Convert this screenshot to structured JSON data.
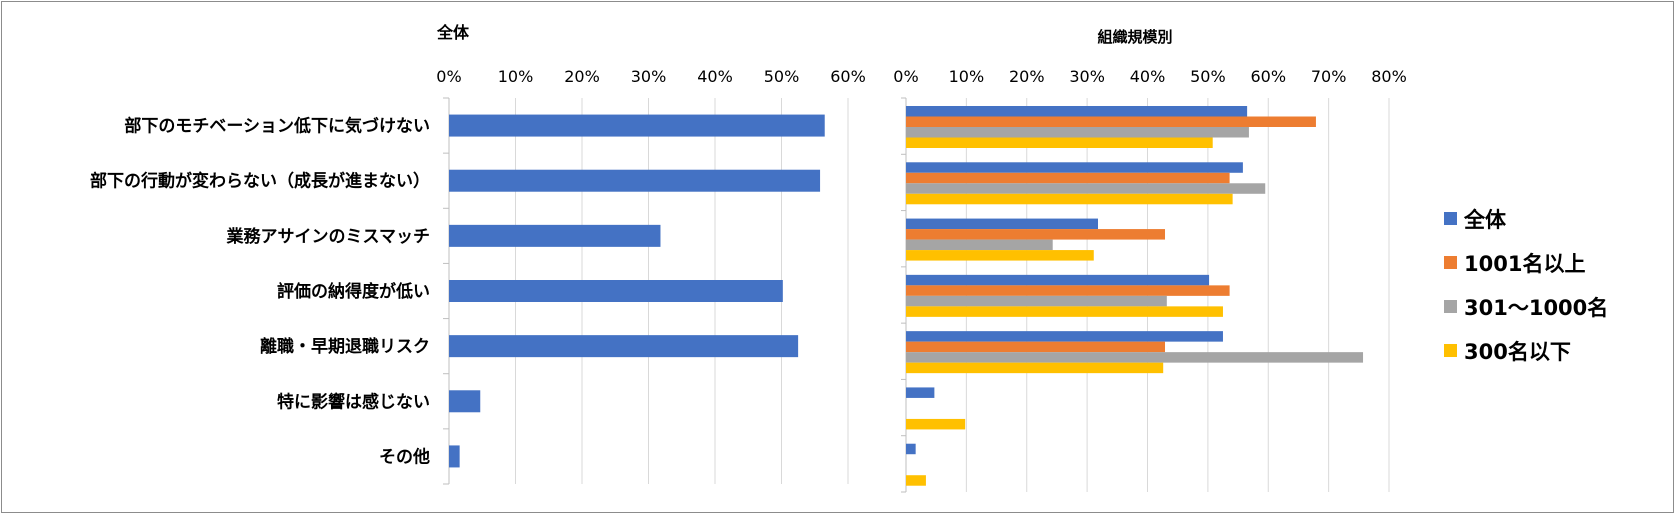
{
  "chart_data": [
    {
      "type": "bar",
      "orientation": "horizontal",
      "title": "全体",
      "categories": [
        "部下のモチベーション低下に気づけない",
        "部下の行動が変わらない（成長が進まない）",
        "業務アサインのミスマッチ",
        "評価の納得度が低い",
        "離職・早期退職リスク",
        "特に影響は感じない",
        "その他"
      ],
      "series": [
        {
          "name": "全体",
          "color": "#4472C4",
          "values": [
            56.5,
            55.8,
            31.8,
            50.2,
            52.5,
            4.7,
            1.6
          ]
        }
      ],
      "xlim": [
        0,
        60
      ],
      "ticks": [
        "0%",
        "10%",
        "20%",
        "30%",
        "40%",
        "50%",
        "60%"
      ],
      "grid": true
    },
    {
      "type": "bar",
      "orientation": "horizontal",
      "title": "組織規模別",
      "categories": [
        "部下のモチベーション低下に気づけない",
        "部下の行動が変わらない（成長が進まない）",
        "業務アサインのミスマッチ",
        "評価の納得度が低い",
        "離職・早期退職リスク",
        "特に影響は感じない",
        "その他"
      ],
      "series": [
        {
          "name": "全体",
          "color": "#4472C4",
          "values": [
            56.5,
            55.8,
            31.8,
            50.2,
            52.5,
            4.7,
            1.6
          ]
        },
        {
          "name": "1001名以上",
          "color": "#ED7D31",
          "values": [
            67.9,
            53.6,
            42.9,
            53.6,
            42.9,
            0,
            0
          ]
        },
        {
          "name": "301～1000名",
          "color": "#A5A5A5",
          "values": [
            56.8,
            59.5,
            24.3,
            43.2,
            75.7,
            0,
            0
          ]
        },
        {
          "name": "300名以下",
          "color": "#FFC000",
          "values": [
            50.8,
            54.1,
            31.1,
            52.5,
            42.6,
            9.8,
            3.3
          ]
        }
      ],
      "xlim": [
        0,
        80
      ],
      "ticks": [
        "0%",
        "10%",
        "20%",
        "30%",
        "40%",
        "50%",
        "60%",
        "70%",
        "80%"
      ],
      "legend": "right",
      "grid": true
    }
  ]
}
